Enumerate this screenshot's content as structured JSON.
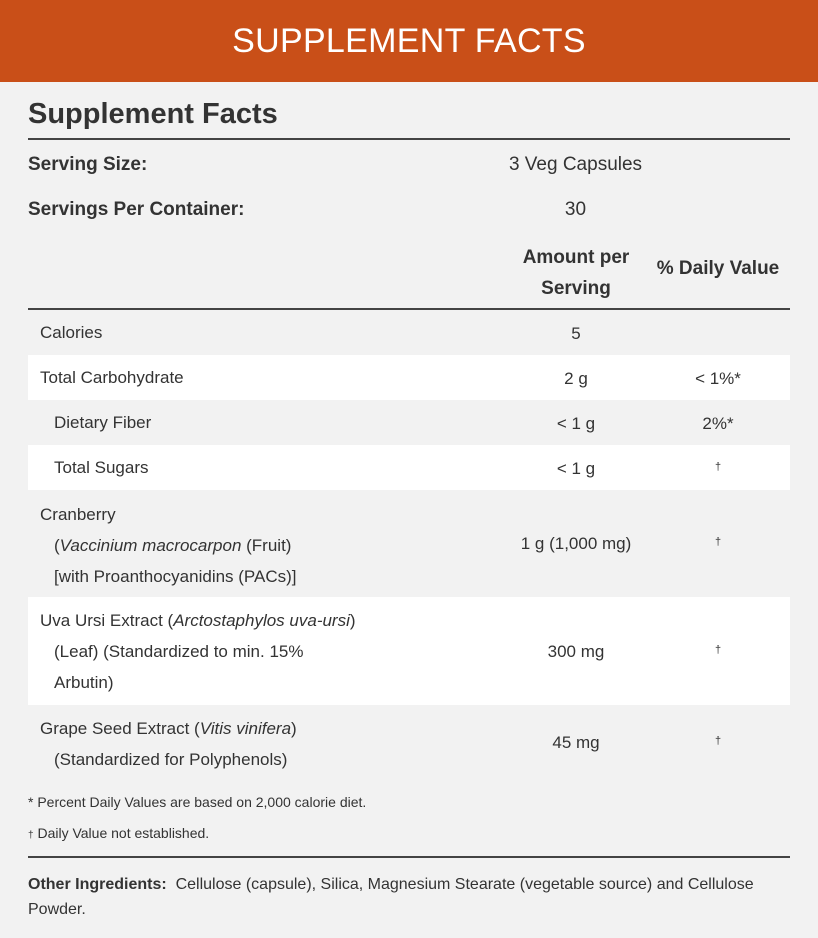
{
  "banner": {
    "title": "SUPPLEMENT FACTS"
  },
  "panel": {
    "title": "Supplement Facts",
    "serving_size_label": "Serving Size:",
    "serving_size_value": "3 Veg Capsules",
    "servings_per_container_label": "Servings Per Container:",
    "servings_per_container_value": "30",
    "col_amount_line1": "Amount per",
    "col_amount_line2": "Serving",
    "col_daily_value": "% Daily Value"
  },
  "nutrients": [
    {
      "name": "Calories",
      "amount": "5",
      "dv": ""
    },
    {
      "name": "Total Carbohydrate",
      "amount": "2 g",
      "dv": "< 1%*"
    },
    {
      "name": "Dietary Fiber",
      "amount": "< 1 g",
      "dv": "2%*"
    },
    {
      "name": "Total Sugars",
      "amount": "< 1 g",
      "dv": "†"
    },
    {
      "name_line1": "Cranberry",
      "name_line2_italic": "Vaccinium macrocarpon",
      "name_line2_rest": " (Fruit)",
      "name_line3": "[with Proanthocyanidins (PACs)]",
      "amount": "1 g (1,000 mg)",
      "dv": "†"
    },
    {
      "name_line1_plain": "Uva Ursi Extract (",
      "name_line1_italic": "Arctostaphylos uva-ursi",
      "name_line1_end": ")",
      "name_line2": "(Leaf) (Standardized to min. 15%",
      "name_line3": "Arbutin)",
      "amount": "300 mg",
      "dv": "†"
    },
    {
      "name_line1_plain": "Grape Seed Extract (",
      "name_line1_italic": "Vitis vinifera",
      "name_line1_end": ")",
      "name_line2": "(Standardized for Polyphenols)",
      "amount": "45 mg",
      "dv": "†"
    }
  ],
  "footnotes": {
    "percent_note": "* Percent Daily Values are based on 2,000 calorie diet.",
    "dagger_symbol": "†",
    "dagger_note": " Daily Value not established."
  },
  "other_ingredients": {
    "label": "Other Ingredients:",
    "text": "Cellulose (capsule), Silica, Magnesium Stearate (vegetable source) and Cellulose Powder."
  },
  "colors": {
    "banner": "#c94f18",
    "background": "#f2f2f2",
    "row_highlight": "#ffffff",
    "text": "#333333"
  }
}
